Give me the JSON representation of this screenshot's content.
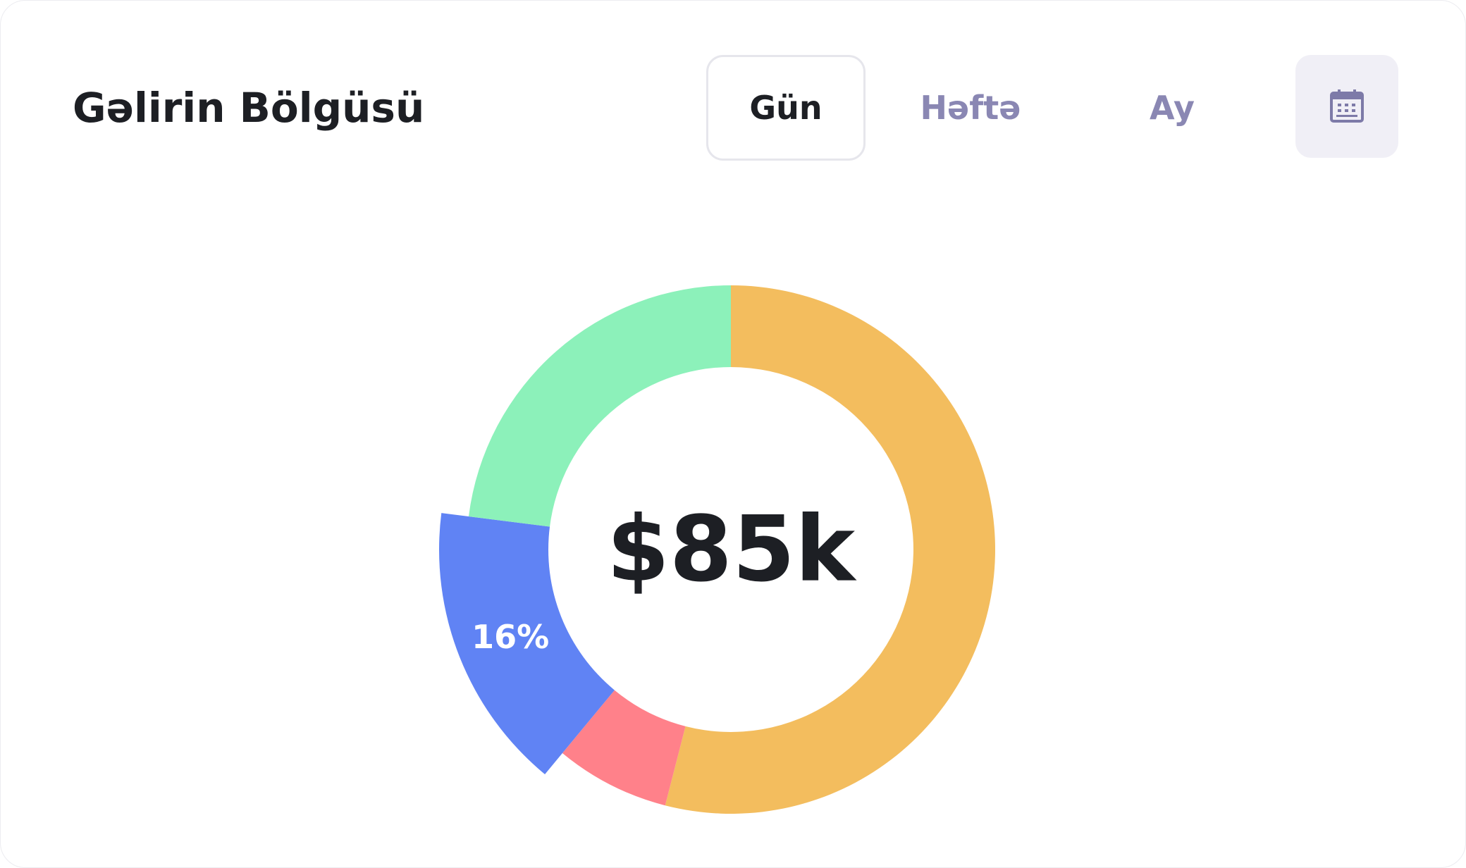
{
  "chart_data": {
    "type": "pie",
    "title": "Gəlirin Bölgüsü",
    "tabs": [
      "Gün",
      "Həftə",
      "Ay"
    ],
    "active_tab": 0,
    "center_label": "$85k",
    "values": [
      54,
      7,
      16,
      23
    ],
    "value_labels": [
      null,
      null,
      "16%",
      null
    ],
    "colors": [
      "#f3bd5e",
      "#ff818a",
      "#6083f4",
      "#8cf1ba"
    ],
    "highlight": 2
  }
}
